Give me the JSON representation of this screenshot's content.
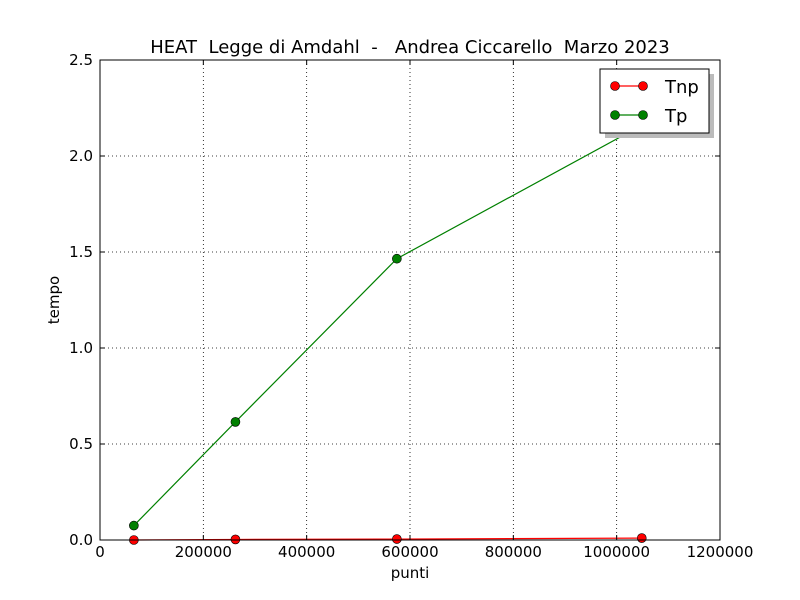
{
  "chart_data": {
    "type": "line",
    "title": "HEAT  Legge di Amdahl  -   Andrea Ciccarello  Marzo 2023",
    "xlabel": "punti",
    "ylabel": "tempo",
    "xlim": [
      0,
      1200000
    ],
    "ylim": [
      0,
      2.5
    ],
    "xticks": [
      "0",
      "200000",
      "400000",
      "600000",
      "800000",
      "1000000",
      "1200000"
    ],
    "yticks": [
      "0.0",
      "0.5",
      "1.0",
      "1.5",
      "2.0",
      "2.5"
    ],
    "grid": true,
    "legend_position": "top-right",
    "series": [
      {
        "name": "Tnp",
        "color": "#ff0000",
        "x": [
          65536,
          262144,
          574564,
          1048576
        ],
        "y": [
          0.0,
          0.003,
          0.005,
          0.01
        ]
      },
      {
        "name": "Tp",
        "color": "#008000",
        "x": [
          65536,
          262144,
          574564,
          1048576
        ],
        "y": [
          0.075,
          0.615,
          1.465,
          2.16
        ]
      }
    ]
  }
}
